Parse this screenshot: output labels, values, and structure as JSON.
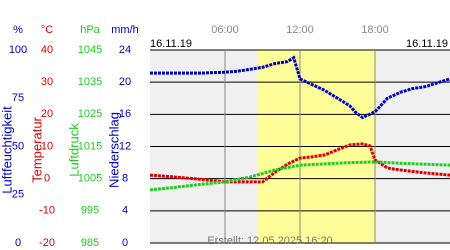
{
  "chart_data": {
    "type": "line",
    "date_left": "16.11.19",
    "date_right": "16.11.19",
    "footer": "Erstellt: 12.05.2025 16:20",
    "xlim": [
      0,
      24
    ],
    "xticks": [
      {
        "value": 6,
        "label": "06:00"
      },
      {
        "value": 12,
        "label": "12:00"
      },
      {
        "value": 18,
        "label": "18:00"
      }
    ],
    "daylight": [
      8.6,
      18.1
    ],
    "grid": true,
    "yaxes": [
      {
        "name": "%",
        "label": "Luftfeuchtigkeit",
        "color": "#0000cc",
        "ylim": [
          0,
          100
        ],
        "yticks": [
          0,
          25,
          50,
          75,
          100
        ]
      },
      {
        "name": "°C",
        "label": "Temperatur",
        "color": "#dd0000",
        "ylim": [
          -20,
          40
        ],
        "yticks": [
          -20,
          -10,
          0,
          10,
          20,
          30,
          40
        ]
      },
      {
        "name": "hPa",
        "label": "Luftdruck",
        "color": "#22cc22",
        "ylim": [
          985,
          1045
        ],
        "yticks": [
          985,
          995,
          1005,
          1015,
          1025,
          1035,
          1045
        ]
      },
      {
        "name": "mm/h",
        "label": "Niederschlag",
        "color": "#0000cc",
        "ylim": [
          0,
          24
        ],
        "yticks": [
          0,
          4,
          8,
          12,
          16,
          20,
          24
        ]
      }
    ],
    "series": [
      {
        "name": "Luftfeuchtigkeit",
        "axis": 0,
        "color": "#0000cc",
        "x": [
          0,
          2,
          4,
          6,
          7,
          8,
          9,
          10,
          11,
          11.5,
          12,
          13,
          14,
          15,
          16,
          16.4,
          17,
          18,
          19,
          20,
          21,
          22,
          23,
          24
        ],
        "values": [
          88,
          88,
          88,
          88.5,
          89,
          90,
          91,
          93,
          94,
          96,
          85,
          82,
          79,
          75,
          71,
          68,
          65,
          68,
          75,
          78,
          80,
          81,
          83,
          85
        ]
      },
      {
        "name": "Temperatur",
        "axis": 1,
        "color": "#dd0000",
        "x": [
          0,
          2,
          4,
          6,
          8,
          9,
          10,
          11,
          12,
          13,
          14,
          15,
          16,
          17,
          17.6,
          18,
          19,
          20,
          22,
          24
        ],
        "values": [
          1.1,
          0.5,
          -0.2,
          -1,
          -1,
          -1,
          2,
          4.5,
          6.4,
          6.8,
          7.4,
          9,
          10.5,
          10.8,
          10.2,
          5.8,
          3.3,
          2.7,
          1.8,
          1.1
        ]
      },
      {
        "name": "Luftdruck",
        "axis": 2,
        "color": "#22cc22",
        "x": [
          0,
          2,
          4,
          6,
          8,
          10,
          12,
          14,
          16,
          18,
          20,
          22,
          24
        ],
        "values": [
          1001.5,
          1002.3,
          1003.2,
          1004,
          1005.5,
          1007.7,
          1009.2,
          1009.6,
          1010,
          1010.2,
          1009.8,
          1009.5,
          1009.2
        ]
      }
    ]
  }
}
